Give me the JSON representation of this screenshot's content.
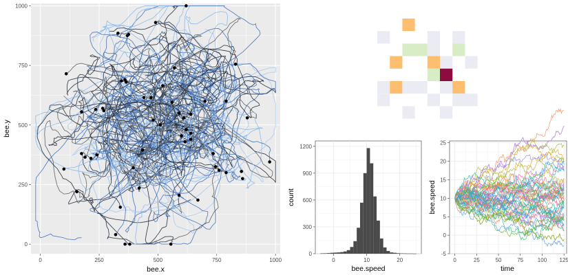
{
  "colors": {
    "panel_bg": "#ebebeb",
    "grid_major": "#ffffff",
    "path_dark": "#1f2a3a",
    "path_mid": "#3f6fb8",
    "path_light": "#8ab8ea",
    "endpoint": "#000000",
    "tile_orange": "#fdbf6f",
    "tile_green": "#d8ecc6",
    "tile_lavender": "#ebebf3",
    "tile_maroon": "#8c0c3f",
    "hist_bar": "#4a4a4a",
    "grid_light": "#e8e8e8"
  },
  "chart_data": [
    {
      "type": "line",
      "name": "bee-trajectories",
      "xlabel": "bee.x",
      "ylabel": "bee.y",
      "xlim": [
        -40,
        1020
      ],
      "ylim": [
        -40,
        1010
      ],
      "x_ticks": [
        0,
        250,
        500,
        750,
        1000
      ],
      "y_ticks": [
        0,
        250,
        500,
        750,
        1000
      ],
      "x_tick_labels": [
        "0",
        "250",
        "500",
        "750",
        "1000"
      ],
      "y_tick_labels": [
        "0",
        "250",
        "500",
        "750",
        "1000"
      ],
      "grid": true,
      "legend": "none",
      "endpoints": [
        {
          "x": 620,
          "y": 1000
        },
        {
          "x": 330,
          "y": 885
        },
        {
          "x": 375,
          "y": 880
        },
        {
          "x": 370,
          "y": 875
        },
        {
          "x": 490,
          "y": 930
        },
        {
          "x": 110,
          "y": 715
        },
        {
          "x": 830,
          "y": 755
        },
        {
          "x": 570,
          "y": 740
        },
        {
          "x": 345,
          "y": 685
        },
        {
          "x": 360,
          "y": 690
        },
        {
          "x": 365,
          "y": 680
        },
        {
          "x": 520,
          "y": 665
        },
        {
          "x": 440,
          "y": 615
        },
        {
          "x": 470,
          "y": 615
        },
        {
          "x": 560,
          "y": 595
        },
        {
          "x": 700,
          "y": 600
        },
        {
          "x": 790,
          "y": 600
        },
        {
          "x": 175,
          "y": 555
        },
        {
          "x": 235,
          "y": 565
        },
        {
          "x": 265,
          "y": 570
        },
        {
          "x": 270,
          "y": 560
        },
        {
          "x": 590,
          "y": 550
        },
        {
          "x": 640,
          "y": 545
        },
        {
          "x": 610,
          "y": 530
        },
        {
          "x": 480,
          "y": 520
        },
        {
          "x": 510,
          "y": 500
        },
        {
          "x": 880,
          "y": 530
        },
        {
          "x": 620,
          "y": 480
        },
        {
          "x": 640,
          "y": 465
        },
        {
          "x": 600,
          "y": 455
        },
        {
          "x": 640,
          "y": 440
        },
        {
          "x": 615,
          "y": 430
        },
        {
          "x": 175,
          "y": 380
        },
        {
          "x": 190,
          "y": 365
        },
        {
          "x": 215,
          "y": 360
        },
        {
          "x": 240,
          "y": 375
        },
        {
          "x": 435,
          "y": 395
        },
        {
          "x": 735,
          "y": 380
        },
        {
          "x": 975,
          "y": 345
        },
        {
          "x": 100,
          "y": 315
        },
        {
          "x": 155,
          "y": 220
        },
        {
          "x": 395,
          "y": 320
        },
        {
          "x": 745,
          "y": 325
        },
        {
          "x": 760,
          "y": 310
        },
        {
          "x": 790,
          "y": 300
        },
        {
          "x": 855,
          "y": 305
        },
        {
          "x": 860,
          "y": 275
        },
        {
          "x": 420,
          "y": 235
        },
        {
          "x": 590,
          "y": 205
        },
        {
          "x": 670,
          "y": 185
        },
        {
          "x": 340,
          "y": 155
        },
        {
          "x": 320,
          "y": 40
        },
        {
          "x": 360,
          "y": 0
        },
        {
          "x": 380,
          "y": 0
        },
        {
          "x": 555,
          "y": 0
        }
      ]
    },
    {
      "type": "heatmap",
      "name": "tile-grid",
      "legend": "none",
      "cells": [
        {
          "col": 2,
          "row": 0,
          "color": "orange"
        },
        {
          "col": 0,
          "row": 1,
          "color": "lavender"
        },
        {
          "col": 4,
          "row": 1,
          "color": "lavender"
        },
        {
          "col": 6,
          "row": 1,
          "color": "lavender"
        },
        {
          "col": 2,
          "row": 2,
          "color": "green"
        },
        {
          "col": 3,
          "row": 2,
          "color": "green"
        },
        {
          "col": 4,
          "row": 2,
          "color": "lavender"
        },
        {
          "col": 6,
          "row": 2,
          "color": "green"
        },
        {
          "col": 1,
          "row": 3,
          "color": "orange"
        },
        {
          "col": 4,
          "row": 3,
          "color": "orange"
        },
        {
          "col": 5,
          "row": 3,
          "color": "lavender"
        },
        {
          "col": 7,
          "row": 3,
          "color": "lavender"
        },
        {
          "col": 4,
          "row": 4,
          "color": "green"
        },
        {
          "col": 5,
          "row": 4,
          "color": "maroon"
        },
        {
          "col": 0,
          "row": 5,
          "color": "lavender"
        },
        {
          "col": 1,
          "row": 5,
          "color": "orange"
        },
        {
          "col": 2,
          "row": 5,
          "color": "lavender"
        },
        {
          "col": 3,
          "row": 5,
          "color": "lavender"
        },
        {
          "col": 5,
          "row": 5,
          "color": "lavender"
        },
        {
          "col": 6,
          "row": 5,
          "color": "orange"
        },
        {
          "col": 0,
          "row": 6,
          "color": "lavender"
        },
        {
          "col": 4,
          "row": 6,
          "color": "lavender"
        },
        {
          "col": 6,
          "row": 6,
          "color": "lavender"
        },
        {
          "col": 7,
          "row": 6,
          "color": "lavender"
        },
        {
          "col": 2,
          "row": 7,
          "color": "lavender"
        },
        {
          "col": 5,
          "row": 7,
          "color": "lavender"
        }
      ]
    },
    {
      "type": "bar",
      "name": "speed-histogram",
      "xlabel": "bee.speed",
      "ylabel": "count",
      "xlim": [
        -5.5,
        26.5
      ],
      "ylim": [
        0,
        1260
      ],
      "x_ticks": [
        0,
        10,
        20
      ],
      "y_ticks": [
        0,
        300,
        600,
        900,
        1200
      ],
      "x_tick_labels": [
        "0",
        "10",
        "20"
      ],
      "y_tick_labels": [
        "0",
        "300",
        "600",
        "900",
        "1200"
      ],
      "grid": true,
      "bin_width": 1,
      "bin_start": -4,
      "counts": [
        4,
        5,
        7,
        10,
        12,
        14,
        18,
        25,
        40,
        75,
        140,
        290,
        570,
        900,
        1180,
        1010,
        640,
        370,
        170,
        70,
        30,
        14,
        10,
        6,
        4,
        3,
        2,
        2,
        1
      ]
    },
    {
      "type": "line",
      "name": "speed-over-time",
      "xlabel": "time",
      "ylabel": "bee.speed",
      "xlim": [
        -6,
        128
      ],
      "ylim": [
        -5,
        25.5
      ],
      "x_ticks": [
        0,
        25,
        50,
        75,
        100,
        125
      ],
      "y_ticks": [
        -5,
        0,
        5,
        10,
        15,
        20,
        25
      ],
      "x_tick_labels": [
        "0",
        "25",
        "50",
        "75",
        "100",
        "125"
      ],
      "y_tick_labels": [
        "-5",
        "0",
        "5",
        "10",
        "15",
        "20",
        "25"
      ],
      "grid": true,
      "legend": "none",
      "series_start": 10,
      "highlighted_series_end": [
        {
          "end": 23.5,
          "color": "#b583e6"
        },
        {
          "end": -0.5,
          "color": "#8aa81e"
        },
        {
          "end": 3.5,
          "color": "#d6e8a8"
        },
        {
          "end": 4.0,
          "color": "#2aa8c8"
        }
      ]
    }
  ]
}
